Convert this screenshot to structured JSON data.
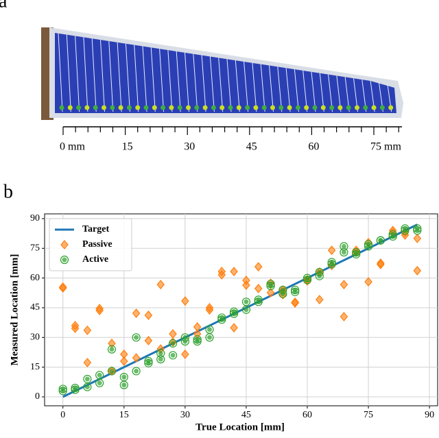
{
  "panel_a": {
    "label": "a",
    "scale_labels": [
      "0 mm",
      "15",
      "30",
      "45",
      "60",
      "75 mm"
    ]
  },
  "panel_b": {
    "label": "b"
  },
  "chart_data": {
    "type": "scatter",
    "xlabel": "True Location [mm]",
    "ylabel": "Measured Location [mm]",
    "xlim": [
      -4.5,
      92
    ],
    "ylim": [
      -4.5,
      92.4
    ],
    "xticks": [
      0,
      15,
      30,
      45,
      60,
      75,
      90
    ],
    "yticks": [
      0,
      15,
      30,
      45,
      60,
      75,
      90
    ],
    "grid": true,
    "legend": "upper left",
    "series": [
      {
        "name": "Target",
        "color": "#1f77b4",
        "marker": "line",
        "x": [
          0,
          87
        ],
        "values": [
          0,
          87
        ]
      },
      {
        "name": "Passive",
        "color": "#ff7f0e",
        "marker": "diamond",
        "x": [
          0,
          0,
          3,
          3,
          6,
          6,
          9,
          9,
          12,
          12,
          15,
          15,
          18,
          18,
          21,
          21,
          24,
          24,
          27,
          27,
          30,
          30,
          33,
          33,
          36,
          36,
          39,
          39,
          42,
          42,
          45,
          45,
          48,
          48,
          51,
          51,
          54,
          54,
          57,
          57,
          60,
          60,
          63,
          63,
          66,
          66,
          69,
          69,
          72,
          72,
          75,
          75,
          78,
          78,
          81,
          81,
          84,
          84,
          87,
          87
        ],
        "values": [
          55,
          55.4,
          36,
          34.6,
          33.6,
          17.3,
          44.6,
          43.6,
          27,
          13.1,
          21.5,
          18,
          42.2,
          19.7,
          41.2,
          28.4,
          56.7,
          24.2,
          31.8,
          27.7,
          48.4,
          21.5,
          35.3,
          31.8,
          43.9,
          45,
          63.3,
          61.6,
          63.3,
          34.9,
          58.8,
          56.4,
          65.7,
          54.7,
          57.4,
          52.6,
          51.6,
          54,
          47.8,
          47.4,
          59.2,
          58.5,
          63,
          49.1,
          74,
          66.4,
          56.7,
          40.5,
          74,
          73,
          77.9,
          58.1,
          67.5,
          66.8,
          84,
          83,
          81.7,
          83,
          80,
          63.7
        ]
      },
      {
        "name": "Active",
        "color": "#2ca02c",
        "marker": "circle",
        "x": [
          0,
          0,
          3,
          3,
          6,
          6,
          9,
          9,
          12,
          12,
          15,
          15,
          18,
          18,
          21,
          21,
          24,
          24,
          27,
          27,
          30,
          30,
          33,
          33,
          36,
          36,
          39,
          39,
          42,
          42,
          45,
          45,
          48,
          48,
          51,
          51,
          54,
          54,
          57,
          57,
          60,
          60,
          63,
          63,
          66,
          66,
          69,
          69,
          72,
          72,
          75,
          75,
          78,
          78,
          81,
          81,
          84,
          84,
          87,
          87
        ],
        "values": [
          4,
          3,
          4.5,
          3.6,
          9,
          5,
          11,
          7,
          24,
          13,
          10,
          6,
          30,
          13,
          18,
          17,
          22,
          19,
          21,
          27,
          30,
          28,
          28,
          29,
          34,
          30,
          40,
          39,
          43,
          42,
          48,
          44,
          49,
          48,
          56,
          57,
          54,
          52,
          54,
          53,
          60,
          59,
          63,
          61,
          67,
          68,
          76,
          73,
          73,
          72,
          76,
          77,
          79,
          79,
          81,
          82,
          84,
          85,
          85,
          84
        ]
      }
    ]
  }
}
